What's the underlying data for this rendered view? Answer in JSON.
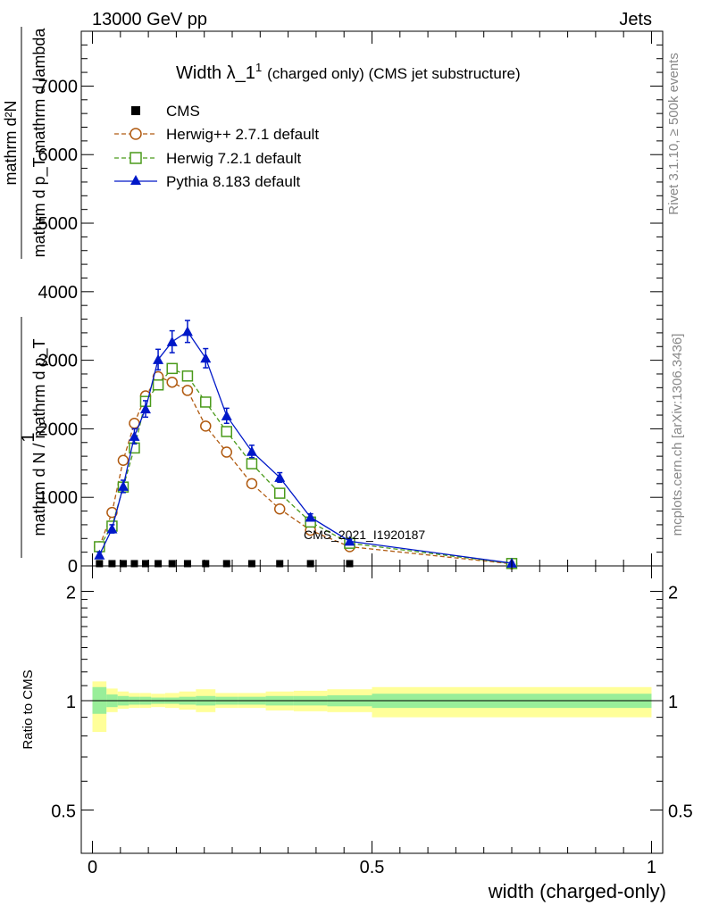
{
  "header": {
    "left": "13000 GeV pp",
    "right": "Jets"
  },
  "side_notes": {
    "rivet": "Rivet 3.1.10, ≥ 500k events",
    "mcplots": "mcplots.cern.ch [arXiv:1306.3436]"
  },
  "chart_data": {
    "type": "line",
    "title": "Width λ_1",
    "title_sup": "1",
    "title_suffix": "(charged only) (CMS jet substructure)",
    "watermark": "CMS_2021_I1920187",
    "ylabel": {
      "numerator": "1",
      "denominator_lines": [
        "mathrm d N / mathrm d p_T",
        "mathrm d N / mathrm d p_T"
      ],
      "top_lines": [
        "mathrm d²N",
        "mathrm d p_T mathrm d lambda"
      ]
    },
    "ylabel_main_num": "mathrm d²N",
    "ylabel_main_den": "mathrm d p_T mathrm d lambda",
    "ylabel_pre_num": "1",
    "ylabel_pre_den": "mathrm d N / mathrm d p_T",
    "xlabel": "width (charged-only)",
    "ratio_ylabel": "Ratio to CMS",
    "xlim": [
      -0.02,
      1.02
    ],
    "ylim": [
      0,
      7800
    ],
    "ratio_ylim": [
      0.38,
      2.35
    ],
    "y_ticks": [
      0,
      1000,
      2000,
      3000,
      4000,
      5000,
      6000,
      7000
    ],
    "y_tick_labels": [
      "0",
      "1000",
      "2000",
      "3000",
      "4000",
      "5000",
      "6000",
      "7000"
    ],
    "x_ticks": [
      0,
      0.5,
      1
    ],
    "x_tick_labels": [
      "0",
      "0.5",
      "1"
    ],
    "ratio_y_ticks": [
      0.5,
      1,
      2
    ],
    "ratio_y_tick_labels": [
      "0.5",
      "1",
      "2"
    ],
    "legend": [
      "CMS",
      "Herwig++ 2.7.1 default",
      "Herwig 7.2.1 default",
      "Pythia 8.183 default"
    ],
    "bin_edges": [
      0,
      0.025,
      0.045,
      0.065,
      0.085,
      0.105,
      0.13,
      0.155,
      0.185,
      0.22,
      0.26,
      0.31,
      0.36,
      0.42,
      0.5,
      1.0
    ],
    "series": [
      {
        "name": "CMS",
        "x": [
          0.0125,
          0.035,
          0.055,
          0.075,
          0.095,
          0.1175,
          0.1425,
          0.17,
          0.2025,
          0.24,
          0.285,
          0.335,
          0.39,
          0.46,
          0.75
        ],
        "values": [
          20,
          20,
          20,
          20,
          20,
          20,
          20,
          20,
          20,
          20,
          20,
          20,
          20,
          20,
          20
        ]
      },
      {
        "name": "Herwig++ 2.7.1 default",
        "color": "#b05a10",
        "x": [
          0.0125,
          0.035,
          0.055,
          0.075,
          0.095,
          0.1175,
          0.1425,
          0.17,
          0.2025,
          0.24,
          0.285,
          0.335,
          0.39,
          0.46,
          0.75
        ],
        "values": [
          280,
          780,
          1540,
          2080,
          2480,
          2760,
          2680,
          2560,
          2040,
          1660,
          1200,
          830,
          520,
          280,
          30
        ]
      },
      {
        "name": "Herwig 7.2.1 default",
        "color": "#4a9a1a",
        "x": [
          0.0125,
          0.035,
          0.055,
          0.075,
          0.095,
          0.1175,
          0.1425,
          0.17,
          0.2025,
          0.24,
          0.285,
          0.335,
          0.39,
          0.46,
          0.75
        ],
        "values": [
          280,
          580,
          1150,
          1720,
          2400,
          2640,
          2880,
          2770,
          2390,
          1960,
          1490,
          1060,
          640,
          330,
          35
        ]
      },
      {
        "name": "Pythia 8.183 default",
        "color": "#0018c8",
        "x": [
          0.0125,
          0.035,
          0.055,
          0.075,
          0.095,
          0.1175,
          0.1425,
          0.17,
          0.2025,
          0.24,
          0.285,
          0.335,
          0.39,
          0.46,
          0.75
        ],
        "values": [
          160,
          540,
          1160,
          1890,
          2290,
          3010,
          3270,
          3420,
          3030,
          2190,
          1670,
          1290,
          710,
          360,
          40
        ],
        "errors": [
          40,
          60,
          90,
          110,
          120,
          150,
          160,
          160,
          140,
          110,
          90,
          70,
          50,
          30,
          10
        ]
      }
    ],
    "ratio_bands": {
      "inner": [
        [
          0.92,
          1.09
        ],
        [
          0.96,
          1.04
        ],
        [
          0.97,
          1.03
        ],
        [
          0.975,
          1.025
        ],
        [
          0.975,
          1.025
        ],
        [
          0.98,
          1.02
        ],
        [
          0.98,
          1.02
        ],
        [
          0.975,
          1.025
        ],
        [
          0.97,
          1.03
        ],
        [
          0.975,
          1.025
        ],
        [
          0.975,
          1.025
        ],
        [
          0.97,
          1.03
        ],
        [
          0.97,
          1.03
        ],
        [
          0.965,
          1.035
        ],
        [
          0.955,
          1.045
        ]
      ],
      "outer": [
        [
          0.82,
          1.13
        ],
        [
          0.93,
          1.08
        ],
        [
          0.95,
          1.06
        ],
        [
          0.955,
          1.05
        ],
        [
          0.955,
          1.05
        ],
        [
          0.96,
          1.045
        ],
        [
          0.955,
          1.05
        ],
        [
          0.945,
          1.06
        ],
        [
          0.93,
          1.075
        ],
        [
          0.955,
          1.05
        ],
        [
          0.955,
          1.05
        ],
        [
          0.94,
          1.06
        ],
        [
          0.935,
          1.065
        ],
        [
          0.93,
          1.075
        ],
        [
          0.9,
          1.09
        ]
      ]
    }
  }
}
